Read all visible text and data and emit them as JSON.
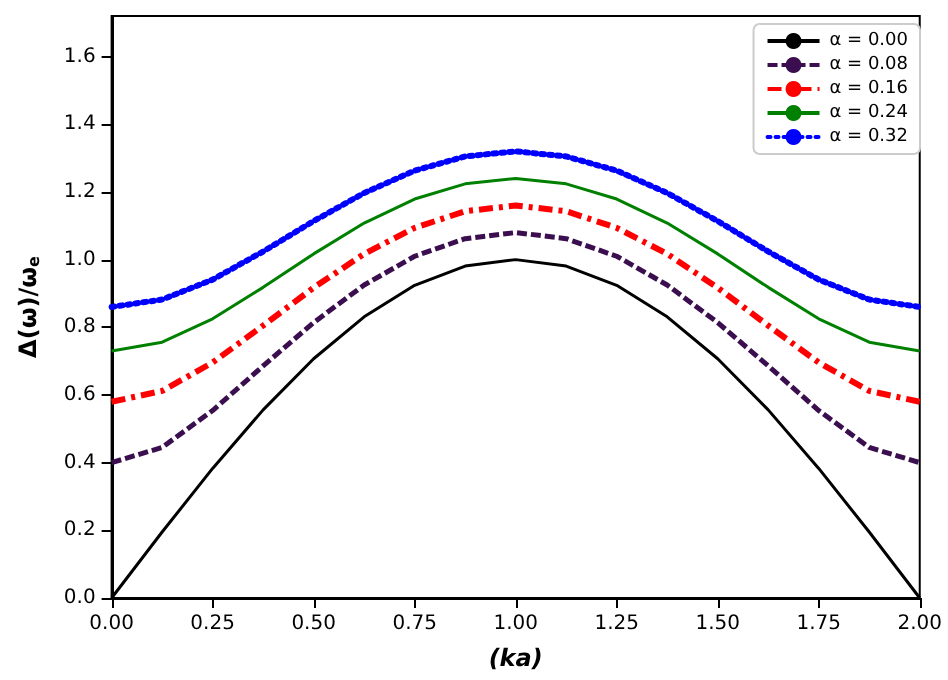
{
  "chart_data": {
    "type": "line",
    "xlabel": "(ka)",
    "ylabel": "Δ(ω)/ω$_{e}$",
    "x": [
      0,
      0.125,
      0.25,
      0.375,
      0.5,
      0.625,
      0.75,
      0.875,
      1,
      1.125,
      1.25,
      1.375,
      1.5,
      1.625,
      1.75,
      1.875,
      2
    ],
    "series": [
      {
        "name": "α = 0.00",
        "color": "#000000",
        "line_style": "solid",
        "values": [
          0,
          0.195,
          0.383,
          0.556,
          0.707,
          0.831,
          0.924,
          0.981,
          1,
          0.981,
          0.924,
          0.831,
          0.707,
          0.556,
          0.383,
          0.195,
          0
        ]
      },
      {
        "name": "α = 0.08",
        "color": "#3b0f4f",
        "line_style": "dashed",
        "values": [
          0.4,
          0.445,
          0.554,
          0.686,
          0.814,
          0.925,
          1.01,
          1.062,
          1.08,
          1.062,
          1.01,
          0.925,
          0.814,
          0.686,
          0.554,
          0.445,
          0.4
        ]
      },
      {
        "name": "α = 0.16",
        "color": "#ff0000",
        "line_style": "dashdot",
        "values": [
          0.58,
          0.612,
          0.696,
          0.805,
          0.917,
          1.017,
          1.094,
          1.143,
          1.16,
          1.143,
          1.094,
          1.017,
          0.917,
          0.805,
          0.696,
          0.612,
          0.58
        ]
      },
      {
        "name": "α = 0.24",
        "color": "#008000",
        "line_style": "solid",
        "values": [
          0.73,
          0.756,
          0.825,
          0.918,
          1.017,
          1.108,
          1.179,
          1.224,
          1.24,
          1.224,
          1.179,
          1.108,
          1.017,
          0.918,
          0.825,
          0.756,
          0.73
        ]
      },
      {
        "name": "α = 0.32",
        "color": "#0000ff",
        "line_style": "dotted",
        "values": [
          0.86,
          0.882,
          0.941,
          1.024,
          1.114,
          1.197,
          1.263,
          1.305,
          1.32,
          1.305,
          1.263,
          1.197,
          1.114,
          1.024,
          0.941,
          0.882,
          0.86
        ]
      }
    ],
    "xlim": [
      0,
      2
    ],
    "xticks": [
      {
        "value": 0,
        "label": "0.00"
      },
      {
        "value": 0.25,
        "label": "0.25"
      },
      {
        "value": 0.5,
        "label": "0.50"
      },
      {
        "value": 0.75,
        "label": "0.75"
      },
      {
        "value": 1,
        "label": "1.00"
      },
      {
        "value": 1.25,
        "label": "1.25"
      },
      {
        "value": 1.5,
        "label": "1.50"
      },
      {
        "value": 1.75,
        "label": "1.75"
      },
      {
        "value": 2,
        "label": "2.00"
      }
    ],
    "ylim": [
      0,
      1.72
    ],
    "yticks": [
      {
        "value": 0,
        "label": "0.0"
      },
      {
        "value": 0.2,
        "label": "0.2"
      },
      {
        "value": 0.4,
        "label": "0.4"
      },
      {
        "value": 0.6,
        "label": "0.6"
      },
      {
        "value": 0.8,
        "label": "0.8"
      },
      {
        "value": 1,
        "label": "1.0"
      },
      {
        "value": 1.2,
        "label": "1.2"
      },
      {
        "value": 1.4,
        "label": "1.4"
      },
      {
        "value": 1.6,
        "label": "1.6"
      }
    ],
    "grid": false,
    "legend": "top right",
    "marker": "none"
  }
}
